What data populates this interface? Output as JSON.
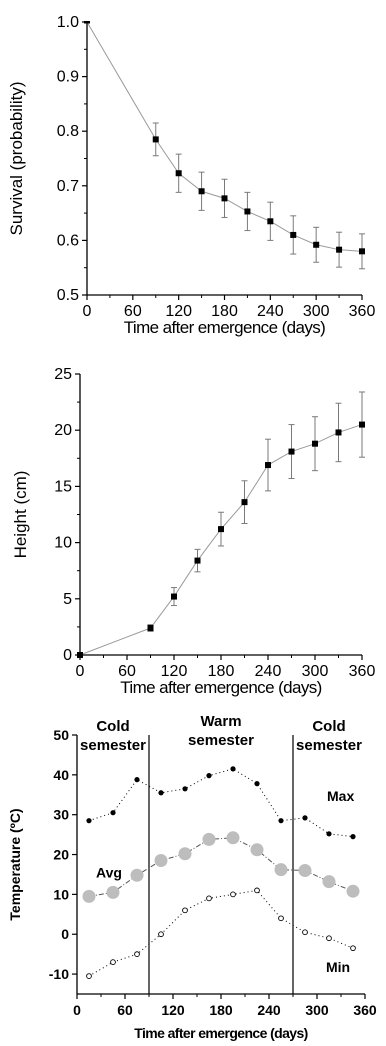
{
  "chart_data": [
    {
      "type": "line",
      "xlabel": "Time after emergence (days)",
      "ylabel": "Survival (probability)",
      "xlim": [
        0,
        360
      ],
      "ylim": [
        0.5,
        1.0
      ],
      "xticks": [
        0,
        60,
        120,
        180,
        240,
        300,
        360
      ],
      "yticks": [
        0.5,
        0.6,
        0.7,
        0.8,
        0.9,
        1.0
      ],
      "ytick_labels": [
        "0.5",
        "0.6",
        "0.7",
        "0.8",
        "0.9",
        "1.0"
      ],
      "series": [
        {
          "x": [
            0,
            90,
            120,
            150,
            180,
            210,
            240,
            270,
            300,
            330,
            360
          ],
          "y": [
            1.0,
            0.785,
            0.723,
            0.69,
            0.677,
            0.653,
            0.635,
            0.61,
            0.592,
            0.583,
            0.58
          ],
          "err": [
            0,
            0.03,
            0.035,
            0.035,
            0.035,
            0.035,
            0.035,
            0.035,
            0.032,
            0.032,
            0.032
          ]
        }
      ],
      "grid": false
    },
    {
      "type": "line",
      "xlabel": "Time after emergence (days)",
      "ylabel": "Height (cm)",
      "xlim": [
        0,
        360
      ],
      "ylim": [
        0,
        25
      ],
      "xticks": [
        0,
        60,
        120,
        180,
        240,
        300,
        360
      ],
      "yticks": [
        0,
        5,
        10,
        15,
        20,
        25
      ],
      "series": [
        {
          "x": [
            0,
            90,
            120,
            150,
            180,
            210,
            240,
            270,
            300,
            330,
            360
          ],
          "y": [
            0,
            2.4,
            5.2,
            8.4,
            11.2,
            13.6,
            16.9,
            18.1,
            18.8,
            19.8,
            20.5
          ],
          "err": [
            0,
            0.3,
            0.8,
            1.0,
            1.5,
            1.9,
            2.3,
            2.4,
            2.4,
            2.6,
            2.9
          ]
        }
      ],
      "grid": false
    },
    {
      "type": "line",
      "xlabel": "Time after emergence (days)",
      "ylabel": "Temperature (ºC)",
      "xlim": [
        0,
        360
      ],
      "ylim": [
        -15,
        50
      ],
      "xticks": [
        0,
        60,
        120,
        180,
        240,
        300,
        360
      ],
      "yticks": [
        -10,
        0,
        10,
        20,
        30,
        40,
        50
      ],
      "dividers_x": [
        90,
        270
      ],
      "semesters": [
        {
          "line1": "Cold",
          "line2": "semester"
        },
        {
          "line1": "Warm",
          "line2": "semester"
        },
        {
          "line1": "Cold",
          "line2": "semester"
        }
      ],
      "series": [
        {
          "name": "Max",
          "x": [
            15,
            45,
            75,
            105,
            135,
            165,
            195,
            225,
            255,
            285,
            315,
            345
          ],
          "y": [
            28.5,
            30.5,
            38.8,
            35.5,
            36.5,
            39.8,
            41.5,
            37.8,
            28.5,
            29.2,
            25.2,
            24.5
          ]
        },
        {
          "name": "Avg",
          "x": [
            15,
            45,
            75,
            105,
            135,
            165,
            195,
            225,
            255,
            285,
            315,
            345
          ],
          "y": [
            9.5,
            10.5,
            14.8,
            18.5,
            20.2,
            23.8,
            24.2,
            21.2,
            16.2,
            16.0,
            13.2,
            10.8
          ]
        },
        {
          "name": "Min",
          "x": [
            15,
            45,
            75,
            105,
            135,
            165,
            195,
            225,
            255,
            285,
            315,
            345
          ],
          "y": [
            -10.5,
            -7.0,
            -5.0,
            0.0,
            6.0,
            9.0,
            10.0,
            11.0,
            4.0,
            0.5,
            -1.0,
            -3.5
          ]
        }
      ],
      "grid": false
    }
  ]
}
